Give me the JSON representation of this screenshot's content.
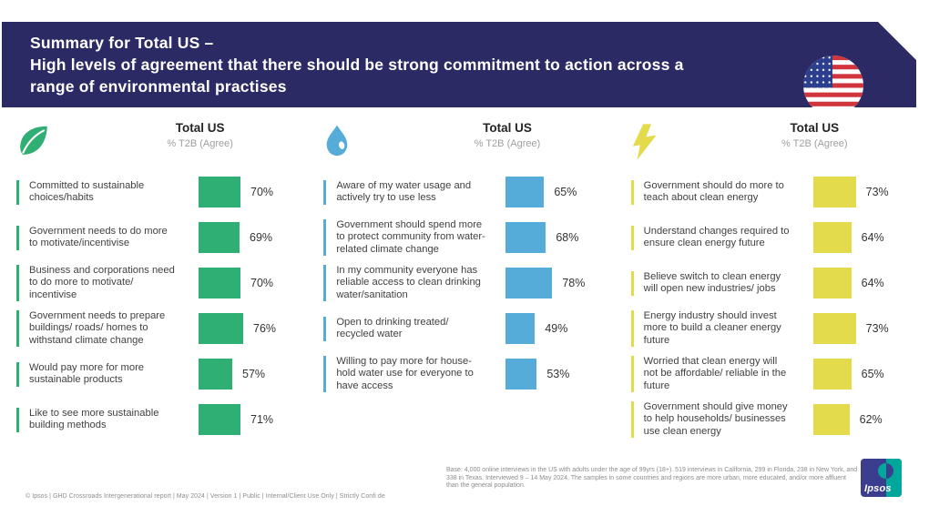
{
  "header": {
    "title_line1": "Summary for Total US –",
    "title_line2": "High levels of agreement that there should be strong commitment to action across a",
    "title_line3": "range of environmental practises",
    "flag_icon": "us-flag-icon"
  },
  "colors": {
    "navy": "#2B2A64",
    "green": "#2FAF73",
    "blue": "#56ACD9",
    "yellow": "#E3DB4B",
    "label_text": "#414140",
    "subtitle_gray": "#9E9E9D",
    "footnote_gray": "#8C8C8C",
    "logo_navy": "#3B3E8F",
    "logo_teal": "#00A79B"
  },
  "chart_data": [
    {
      "type": "bar",
      "icon": "leaf-icon",
      "title": "Total US",
      "subtitle": "% T2B (Agree)",
      "bar_color": "#2FAF73",
      "xlim": [
        0,
        100
      ],
      "categories": [
        "Committed to sustainable choices/habits",
        "Government needs to do more to motivate/incentivise",
        "Business and corporations need to do more to motivate/ incentivise",
        "Government needs to prepare buildings/ roads/ homes to withstand climate change",
        "Would pay more for more sustainable products",
        "Like to see more sustainable building methods"
      ],
      "values": [
        70,
        69,
        70,
        76,
        57,
        71
      ],
      "value_labels": [
        "70%",
        "69%",
        "70%",
        "76%",
        "57%",
        "71%"
      ]
    },
    {
      "type": "bar",
      "icon": "water-drop-icon",
      "title": "Total US",
      "subtitle": "% T2B (Agree)",
      "bar_color": "#56ACD9",
      "xlim": [
        0,
        100
      ],
      "categories": [
        "Aware of my water usage and actively try to use less",
        "Government should spend more to protect community from water-related climate change",
        "In my community everyone has reliable access to clean drinking water/sanitation",
        "Open to drinking treated/ recycled water",
        "Willing to pay more for house-hold water use for everyone to have access"
      ],
      "values": [
        65,
        68,
        78,
        49,
        53
      ],
      "value_labels": [
        "65%",
        "68%",
        "78%",
        "49%",
        "53%"
      ]
    },
    {
      "type": "bar",
      "icon": "lightning-bolt-icon",
      "title": "Total US",
      "subtitle": "% T2B (Agree)",
      "bar_color": "#E3DB4B",
      "xlim": [
        0,
        100
      ],
      "categories": [
        "Government should do more to teach about clean energy",
        "Understand changes required to ensure clean energy future",
        "Believe switch to clean energy will open new industries/ jobs",
        "Energy industry should invest more to build a cleaner energy future",
        "Worried that clean energy will not be affordable/ reliable in the future",
        "Government should give money to help households/ businesses use clean energy"
      ],
      "values": [
        73,
        64,
        64,
        73,
        65,
        62
      ],
      "value_labels": [
        "73%",
        "64%",
        "64%",
        "73%",
        "65%",
        "62%"
      ]
    }
  ],
  "footnote": {
    "base_text": "Base: 4,000 online interviews in the US with adults under the age of 99yrs (18+). 519 interviews in California, 299 in Florida, 238 in New York, and 338 in Texas. Interviewed 9 – 14 May 2024. The samples in some countries and regions are more urban, more educated, and/or more affluent than the general population."
  },
  "footer": {
    "left_text": "© Ipsos | GHD Crossroads Intergenerational report | May 2024 | Version 1 | Public | Internal/Client Use Only | Strictly Confi de",
    "logo_text": "Ipsos"
  }
}
